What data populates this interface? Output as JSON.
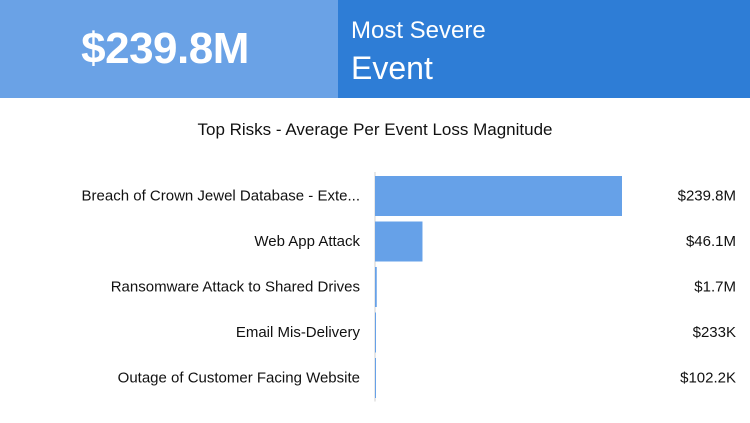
{
  "kpi": {
    "value": "$239.8M",
    "label_line1": "Most Severe",
    "label_line2": "Event"
  },
  "colors": {
    "kpi_left_bg": "#6aa2e6",
    "kpi_right_bg": "#2e7dd6",
    "bar": "#66a1e8",
    "axis": "#d0d0d0"
  },
  "chart_data": {
    "type": "bar",
    "orientation": "horizontal",
    "title": "Top Risks - Average Per Event Loss Magnitude",
    "categories": [
      "Breach of Crown Jewel Database - Exte...",
      "Web App Attack",
      "Ransomware Attack to Shared Drives",
      "Email Mis-Delivery",
      "Outage of Customer Facing Website"
    ],
    "values": [
      239.8,
      46.1,
      1.7,
      0.233,
      0.1022
    ],
    "value_labels": [
      "$239.8M",
      "$46.1M",
      "$1.7M",
      "$233K",
      "$102.2K"
    ],
    "unit": "$M",
    "xlim": [
      0,
      239.8
    ],
    "grid": false,
    "legend": "none"
  }
}
